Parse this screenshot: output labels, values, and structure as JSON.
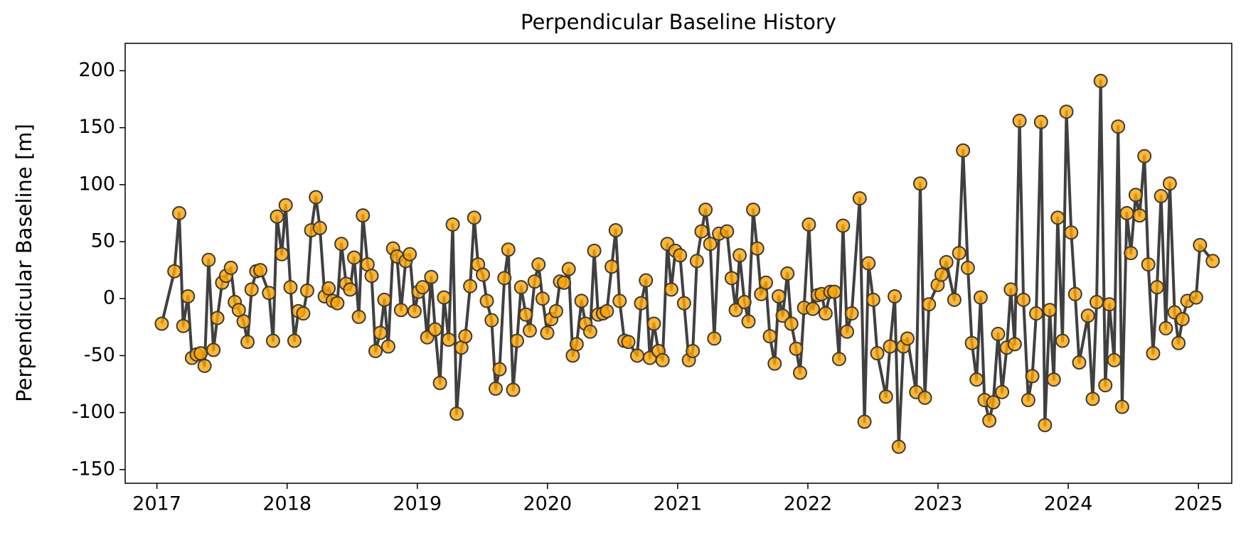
{
  "chart_data": {
    "type": "line",
    "title": "Perpendicular Baseline History",
    "y_label": "Perpendicular Baseline [m]",
    "line_color": "#404040",
    "marker_color": "#ffa500",
    "marker_edge_color": "#3a3a3a",
    "xlim": [
      2016.756,
      2025.256
    ],
    "xticks": [
      2017,
      2018,
      2019,
      2020,
      2021,
      2022,
      2023,
      2024,
      2025
    ],
    "ylim": [
      -162,
      224
    ],
    "yticks": [
      -150,
      -100,
      -50,
      0,
      50,
      100,
      150,
      200
    ],
    "grid": false,
    "x": [
      2017.037,
      2017.134,
      2017.171,
      2017.202,
      2017.238,
      2017.269,
      2017.305,
      2017.336,
      2017.366,
      2017.397,
      2017.434,
      2017.464,
      2017.501,
      2017.531,
      2017.568,
      2017.598,
      2017.629,
      2017.666,
      2017.696,
      2017.727,
      2017.763,
      2017.794,
      2017.861,
      2017.892,
      2017.922,
      2017.959,
      2017.989,
      2018.026,
      2018.056,
      2018.087,
      2018.124,
      2018.154,
      2018.185,
      2018.221,
      2018.252,
      2018.289,
      2018.319,
      2018.35,
      2018.386,
      2018.417,
      2018.453,
      2018.484,
      2018.515,
      2018.551,
      2018.582,
      2018.618,
      2018.649,
      2018.679,
      2018.716,
      2018.747,
      2018.777,
      2018.814,
      2018.844,
      2018.875,
      2018.911,
      2018.942,
      2018.979,
      2019.009,
      2019.04,
      2019.076,
      2019.107,
      2019.137,
      2019.174,
      2019.205,
      2019.241,
      2019.272,
      2019.302,
      2019.339,
      2019.369,
      2019.406,
      2019.437,
      2019.467,
      2019.504,
      2019.534,
      2019.571,
      2019.602,
      2019.632,
      2019.669,
      2019.699,
      2019.736,
      2019.766,
      2019.797,
      2019.834,
      2019.864,
      2019.901,
      2019.931,
      2019.962,
      2019.998,
      2020.029,
      2020.066,
      2020.096,
      2020.127,
      2020.163,
      2020.194,
      2020.224,
      2020.261,
      2020.292,
      2020.328,
      2020.359,
      2020.389,
      2020.426,
      2020.456,
      2020.493,
      2020.524,
      2020.554,
      2020.591,
      2020.621,
      2020.689,
      2020.719,
      2020.756,
      2020.786,
      2020.817,
      2020.853,
      2020.884,
      2020.921,
      2020.951,
      2020.982,
      2021.018,
      2021.049,
      2021.086,
      2021.116,
      2021.147,
      2021.183,
      2021.214,
      2021.25,
      2021.281,
      2021.318,
      2021.379,
      2021.415,
      2021.446,
      2021.476,
      2021.513,
      2021.544,
      2021.58,
      2021.611,
      2021.641,
      2021.678,
      2021.708,
      2021.745,
      2021.776,
      2021.806,
      2021.843,
      2021.873,
      2021.91,
      2021.94,
      2021.971,
      2022.008,
      2022.038,
      2022.075,
      2022.105,
      2022.136,
      2022.173,
      2022.203,
      2022.24,
      2022.27,
      2022.301,
      2022.337,
      2022.398,
      2022.435,
      2022.466,
      2022.502,
      2022.533,
      2022.6,
      2022.631,
      2022.667,
      2022.698,
      2022.734,
      2022.765,
      2022.832,
      2022.863,
      2022.899,
      2022.93,
      2022.997,
      2023.027,
      2023.064,
      2023.125,
      2023.162,
      2023.192,
      2023.229,
      2023.26,
      2023.296,
      2023.327,
      2023.357,
      2023.394,
      2023.424,
      2023.461,
      2023.492,
      2023.528,
      2023.559,
      2023.589,
      2023.626,
      2023.656,
      2023.693,
      2023.724,
      2023.754,
      2023.791,
      2023.821,
      2023.858,
      2023.889,
      2023.919,
      2023.956,
      2023.986,
      2024.023,
      2024.053,
      2024.084,
      2024.151,
      2024.188,
      2024.218,
      2024.249,
      2024.285,
      2024.316,
      2024.353,
      2024.383,
      2024.414,
      2024.45,
      2024.481,
      2024.518,
      2024.548,
      2024.585,
      2024.615,
      2024.652,
      2024.682,
      2024.713,
      2024.75,
      2024.78,
      2024.817,
      2024.847,
      2024.878,
      2024.915,
      2024.982,
      2025.012,
      2025.11
    ],
    "values": [
      -22,
      24,
      75,
      -24,
      2,
      -52,
      -49,
      -48,
      -59,
      34,
      -45,
      -17,
      14,
      20,
      27,
      -3,
      -10,
      -20,
      -38,
      8,
      24,
      25,
      5,
      -37,
      72,
      39,
      82,
      10,
      -37,
      -11,
      -13,
      7,
      60,
      89,
      62,
      2,
      9,
      -2,
      -4,
      48,
      13,
      8,
      36,
      -16,
      73,
      30,
      20,
      -46,
      -30,
      -1,
      -42,
      44,
      37,
      -10,
      33,
      39,
      -11,
      6,
      10,
      -34,
      19,
      -27,
      -74,
      1,
      -36,
      65,
      -101,
      -43,
      -33,
      11,
      71,
      30,
      21,
      -2,
      -19,
      -79,
      -62,
      18,
      43,
      -80,
      -37,
      10,
      -14,
      -28,
      15,
      30,
      0,
      -30,
      -18,
      -11,
      15,
      14,
      26,
      -50,
      -40,
      -2,
      -22,
      -29,
      42,
      -14,
      -13,
      -11,
      28,
      60,
      -2,
      -37,
      -38,
      -50,
      -4,
      16,
      -52,
      -22,
      -46,
      -54,
      48,
      8,
      42,
      38,
      -4,
      -54,
      -46,
      33,
      59,
      78,
      48,
      -35,
      57,
      59,
      18,
      -10,
      38,
      -3,
      -20,
      78,
      44,
      4,
      14,
      -33,
      -57,
      2,
      -15,
      22,
      -22,
      -44,
      -65,
      -8,
      65,
      -9,
      3,
      4,
      -13,
      6,
      6,
      -53,
      64,
      -29,
      -13,
      88,
      -108,
      31,
      -1,
      -48,
      -86,
      -42,
      2,
      -130,
      -42,
      -35,
      -82,
      101,
      -87,
      -5,
      12,
      21,
      32,
      -1,
      40,
      130,
      27,
      -39,
      -71,
      1,
      -89,
      -107,
      -91,
      -31,
      -82,
      -43,
      8,
      -40,
      156,
      -1,
      -89,
      -68,
      -13,
      155,
      -111,
      -10,
      -71,
      71,
      -37,
      164,
      58,
      4,
      -56,
      -15,
      -88,
      -3,
      191,
      -76,
      -5,
      -54,
      151,
      -95,
      75,
      40,
      91,
      73,
      125,
      30,
      -48,
      10,
      90,
      -26,
      101,
      -12,
      -39,
      -18,
      -2,
      1,
      47,
      33
    ]
  }
}
